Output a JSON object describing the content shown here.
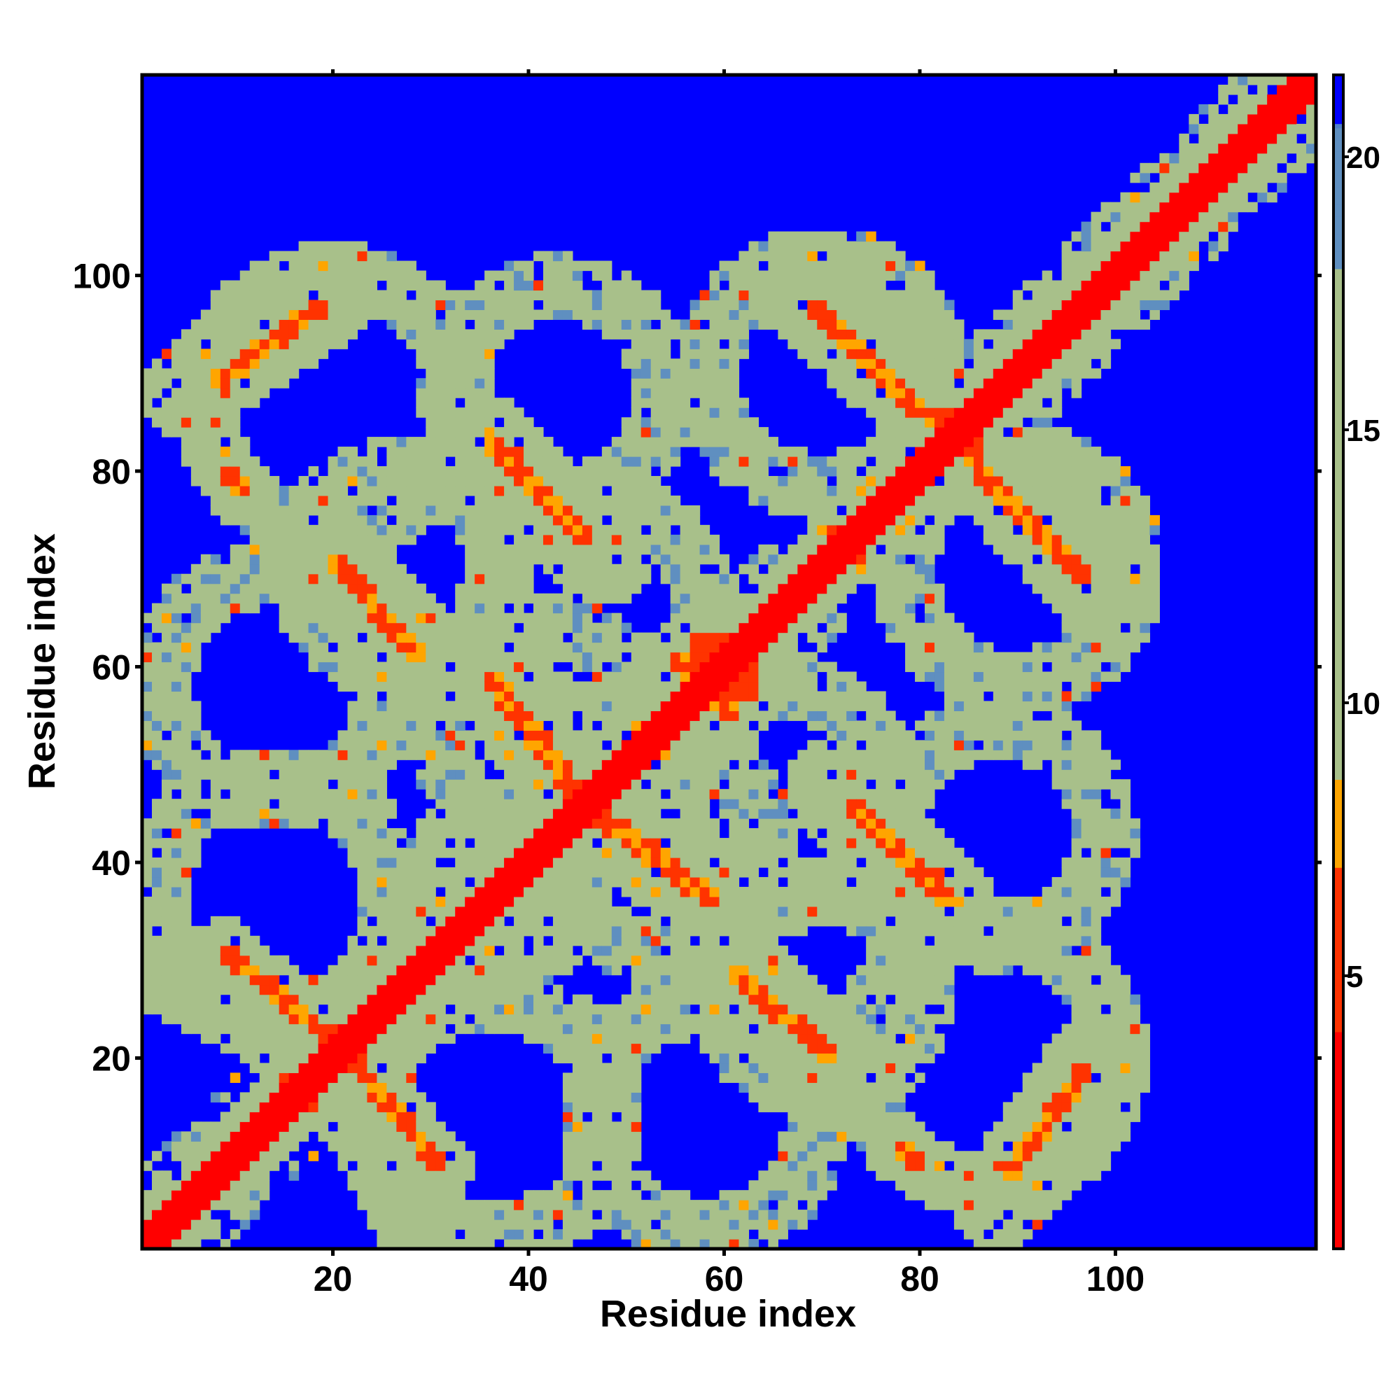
{
  "chart_data": {
    "type": "heatmap",
    "title": "",
    "xlabel": "Residue index",
    "ylabel": "Residue index",
    "xlim": [
      1,
      120
    ],
    "ylim": [
      1,
      120
    ],
    "xticks": [
      20,
      40,
      60,
      80,
      100
    ],
    "yticks": [
      20,
      40,
      60,
      80,
      100
    ],
    "colorbar": {
      "ticks": [
        5,
        10,
        15,
        20
      ],
      "range": [
        0,
        21.5
      ],
      "stops": [
        {
          "value": 0,
          "color": "#ff0000"
        },
        {
          "value": 4,
          "color": "#ff3300"
        },
        {
          "value": 7,
          "color": "#ffa500"
        },
        {
          "value": 8.5,
          "color": "#ffa500"
        },
        {
          "value": 8.6,
          "color": "#a8c08a"
        },
        {
          "value": 12,
          "color": "#a8c08a"
        },
        {
          "value": 18,
          "color": "#5f8fc0"
        },
        {
          "value": 20.5,
          "color": "#5080c8"
        },
        {
          "value": 21,
          "color": "#0000ff"
        }
      ]
    },
    "cutoff_color": "#0000ff",
    "description_of_values": "symmetric residue-residue distance map; diagonal ~0-4, side-band contacts ~5-8, neighbourhood ~10-18, beyond cutoff = blue",
    "diagonal": {
      "from": 1,
      "to": 120
    },
    "contact_streaks": [
      {
        "x0": 9,
        "y0": 31,
        "x1": 21,
        "y1": 21
      },
      {
        "x0": 21,
        "y0": 21,
        "x1": 31,
        "y1": 8
      },
      {
        "x0": 36,
        "y0": 83,
        "x1": 46,
        "y1": 73
      },
      {
        "x0": 20,
        "y0": 71,
        "x1": 29,
        "y1": 61
      },
      {
        "x0": 36,
        "y0": 59,
        "x1": 45,
        "y1": 47
      },
      {
        "x0": 48,
        "y0": 44,
        "x1": 58,
        "y1": 37
      },
      {
        "x0": 61,
        "y0": 29,
        "x1": 70,
        "y1": 21
      },
      {
        "x0": 71,
        "y0": 46,
        "x1": 81,
        "y1": 35
      },
      {
        "x0": 69,
        "y0": 97,
        "x1": 79,
        "y1": 87
      },
      {
        "x0": 79,
        "y0": 87,
        "x1": 85,
        "y1": 83
      },
      {
        "x0": 86,
        "y0": 81,
        "x1": 97,
        "y1": 70
      },
      {
        "x0": 8,
        "y0": 89,
        "x1": 19,
        "y1": 97
      },
      {
        "x0": 55,
        "y0": 61,
        "x1": 59,
        "y1": 56
      },
      {
        "x0": 96,
        "y0": 20,
        "x1": 99,
        "y1": 18
      },
      {
        "x0": 76,
        "y0": 10,
        "x1": 80,
        "y1": 9
      },
      {
        "x0": 86,
        "y0": 9,
        "x1": 88,
        "y1": 8
      },
      {
        "x0": 9,
        "y0": 80,
        "x1": 11,
        "y1": 78
      }
    ],
    "contact_regions": [
      {
        "cx": 60,
        "cy": 60,
        "rx": 3,
        "ry": 3
      },
      {
        "cx": 21,
        "cy": 21,
        "rx": 2,
        "ry": 2
      },
      {
        "cx": 46,
        "cy": 46,
        "rx": 2,
        "ry": 2
      },
      {
        "cx": 84,
        "cy": 84,
        "rx": 2,
        "ry": 2
      }
    ],
    "neighbourhood_rings": [
      {
        "cx": 20,
        "cy": 87,
        "r": 18
      },
      {
        "cx": 43,
        "cy": 88,
        "r": 15
      },
      {
        "cx": 70,
        "cy": 90,
        "r": 16
      },
      {
        "cx": 27,
        "cy": 70,
        "r": 14
      },
      {
        "cx": 47,
        "cy": 66,
        "r": 15
      },
      {
        "cx": 89,
        "cy": 68,
        "r": 16
      },
      {
        "cx": 14,
        "cy": 58,
        "r": 16
      },
      {
        "cx": 42,
        "cy": 53,
        "r": 15
      },
      {
        "cx": 68,
        "cy": 55,
        "r": 15
      },
      {
        "cx": 90,
        "cy": 50,
        "r": 15
      },
      {
        "cx": 14,
        "cy": 36,
        "r": 17
      },
      {
        "cx": 40,
        "cy": 34,
        "r": 16
      },
      {
        "cx": 65,
        "cy": 34,
        "r": 16
      },
      {
        "cx": 88,
        "cy": 33,
        "r": 15
      },
      {
        "cx": 26,
        "cy": 15,
        "r": 15
      },
      {
        "cx": 56,
        "cy": 12,
        "r": 15
      },
      {
        "cx": 80,
        "cy": 12,
        "r": 15
      },
      {
        "cx": 95,
        "cy": 16,
        "r": 11
      }
    ],
    "neighbourhood_halos": [
      {
        "x0": 2,
        "y0": 30,
        "x1": 22,
        "y1": 20
      },
      {
        "x0": 22,
        "y0": 20,
        "x1": 33,
        "y1": 7
      },
      {
        "x0": 34,
        "y0": 84,
        "x1": 48,
        "y1": 71
      },
      {
        "x0": 18,
        "y0": 73,
        "x1": 31,
        "y1": 59
      },
      {
        "x0": 34,
        "y0": 61,
        "x1": 47,
        "y1": 45
      },
      {
        "x0": 47,
        "y0": 45,
        "x1": 60,
        "y1": 35
      },
      {
        "x0": 59,
        "y0": 31,
        "x1": 72,
        "y1": 19
      },
      {
        "x0": 69,
        "y0": 48,
        "x1": 83,
        "y1": 33
      },
      {
        "x0": 67,
        "y0": 99,
        "x1": 86,
        "y1": 82
      },
      {
        "x0": 84,
        "y0": 83,
        "x1": 100,
        "y1": 68
      },
      {
        "x0": 5,
        "y0": 88,
        "x1": 21,
        "y1": 99
      },
      {
        "x0": 93,
        "y0": 22,
        "x1": 102,
        "y1": 16
      }
    ]
  }
}
